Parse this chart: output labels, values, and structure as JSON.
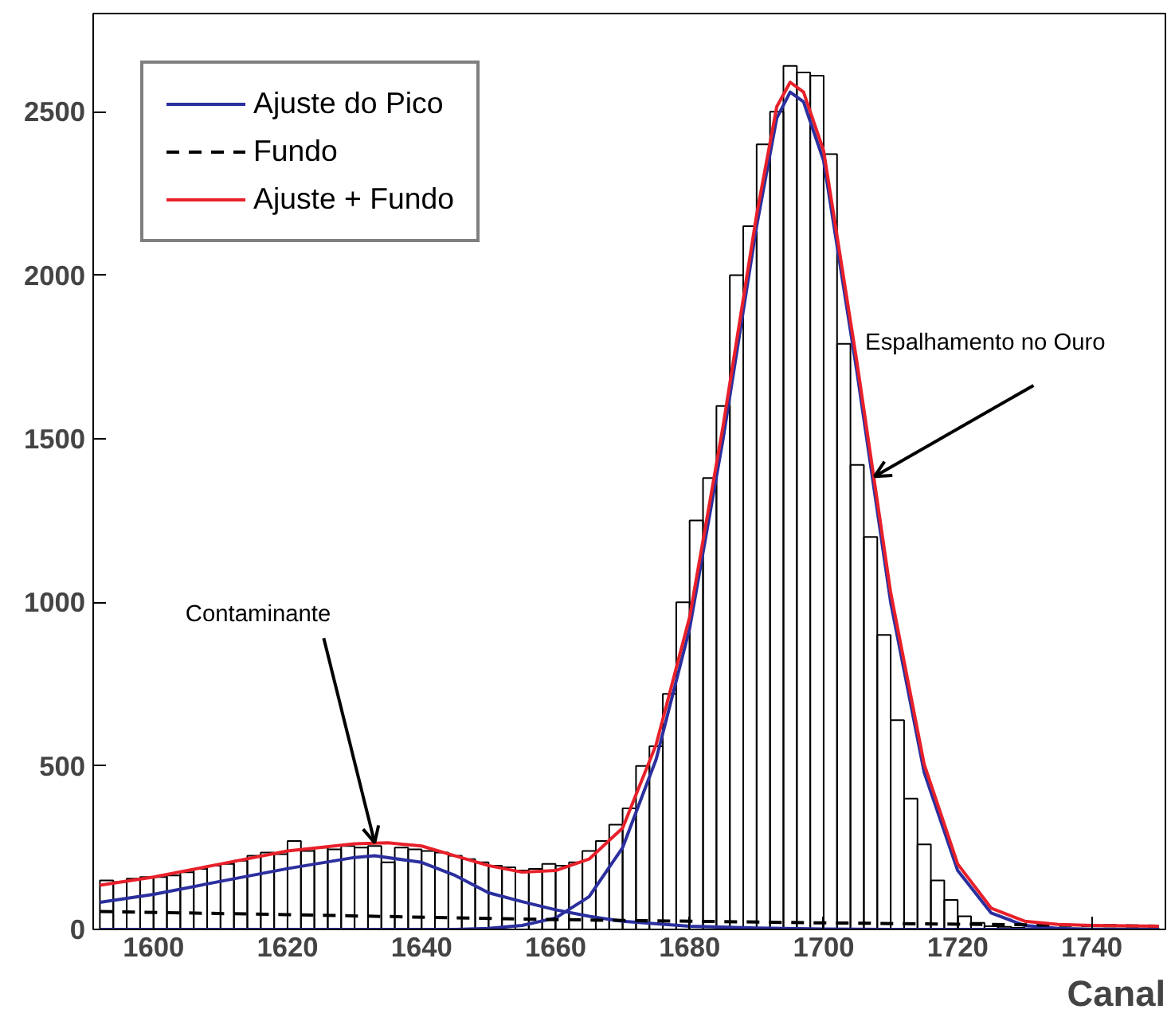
{
  "chart_data": {
    "type": "histogram",
    "xlabel": "Canal",
    "color": "#000000",
    "bins": [
      1592,
      1594,
      1596,
      1598,
      1600,
      1602,
      1604,
      1606,
      1608,
      1610,
      1612,
      1614,
      1616,
      1618,
      1620,
      1622,
      1624,
      1626,
      1628,
      1630,
      1632,
      1634,
      1636,
      1638,
      1640,
      1642,
      1644,
      1646,
      1648,
      1650,
      1652,
      1654,
      1656,
      1658,
      1660,
      1662,
      1664,
      1666,
      1668,
      1670,
      1672,
      1674,
      1676,
      1678,
      1680,
      1682,
      1684,
      1686,
      1688,
      1690,
      1692,
      1694,
      1696,
      1698,
      1700,
      1702,
      1704,
      1706,
      1708,
      1710,
      1712,
      1714,
      1716,
      1718,
      1720,
      1722,
      1724,
      1726,
      1728,
      1730,
      1732,
      1734,
      1736,
      1738,
      1740,
      1742,
      1744,
      1746,
      1748,
      1750
    ],
    "values": [
      150,
      145,
      155,
      160,
      160,
      165,
      175,
      185,
      195,
      200,
      210,
      225,
      235,
      230,
      270,
      240,
      250,
      245,
      255,
      250,
      255,
      205,
      250,
      245,
      240,
      235,
      225,
      215,
      205,
      195,
      190,
      180,
      185,
      200,
      195,
      205,
      240,
      270,
      320,
      370,
      500,
      560,
      720,
      1000,
      1250,
      1380,
      1600,
      2000,
      2150,
      2400,
      2500,
      2640,
      2620,
      2610,
      2370,
      1790,
      1420,
      1200,
      900,
      640,
      400,
      260,
      150,
      90,
      40,
      20,
      10,
      8,
      5,
      3,
      3,
      3,
      3,
      3,
      3,
      3,
      3,
      3,
      3
    ],
    "series": [
      {
        "type": "line",
        "name": "Ajuste do Pico",
        "color": "#2b2f9e",
        "x": [
          1592,
          1600,
          1610,
          1620,
          1630,
          1633,
          1640,
          1645,
          1650,
          1655,
          1660,
          1665,
          1670,
          1680,
          1690,
          1700,
          1710,
          1750
        ],
        "values": [
          83,
          107,
          147,
          186,
          220,
          225,
          205,
          165,
          112,
          85,
          60,
          40,
          25,
          10,
          4,
          1,
          0,
          0
        ]
      },
      {
        "type": "line",
        "color": "#2b2f9e",
        "x": [
          1592,
          1645,
          1650,
          1655,
          1660,
          1665,
          1670,
          1675,
          1680,
          1685,
          1690,
          1693,
          1695,
          1697,
          1700,
          1705,
          1710,
          1715,
          1720,
          1725,
          1730,
          1735,
          1740,
          1750
        ],
        "values": [
          0,
          0,
          3,
          12,
          35,
          100,
          250,
          520,
          920,
          1500,
          2150,
          2480,
          2560,
          2530,
          2350,
          1700,
          1000,
          480,
          180,
          50,
          12,
          3,
          0,
          0
        ]
      },
      {
        "type": "line",
        "name": "Fundo",
        "color": "#000000",
        "line_style": "dashed",
        "x": [
          1592,
          1620,
          1660,
          1700,
          1750
        ],
        "values": [
          55,
          45,
          30,
          20,
          10
        ]
      },
      {
        "type": "line",
        "name": "Ajuste + Fundo",
        "color": "#e8202a",
        "x": [
          1592,
          1600,
          1610,
          1620,
          1630,
          1635,
          1640,
          1645,
          1650,
          1655,
          1660,
          1665,
          1670,
          1675,
          1680,
          1685,
          1690,
          1693,
          1695,
          1697,
          1700,
          1705,
          1710,
          1715,
          1720,
          1725,
          1730,
          1735,
          1740,
          1750
        ],
        "values": [
          135,
          160,
          200,
          240,
          262,
          265,
          255,
          225,
          195,
          175,
          180,
          215,
          310,
          565,
          955,
          1540,
          2185,
          2515,
          2590,
          2560,
          2380,
          1730,
          1030,
          505,
          200,
          65,
          25,
          15,
          12,
          10
        ]
      }
    ],
    "xlim": [
      1591,
      1751
    ],
    "ylim": [
      0,
      2800
    ],
    "xticks": [
      1600,
      1620,
      1640,
      1660,
      1680,
      1700,
      1720,
      1740
    ],
    "yticks": [
      0,
      500,
      1000,
      1500,
      2000,
      2500
    ],
    "annotations": [
      {
        "text": "Contaminante",
        "x": 1633,
        "y": 265
      },
      {
        "text": "Espalhamento no Ouro",
        "x": 1707.6,
        "y": 1385
      }
    ],
    "legend": "top left",
    "grid": false
  }
}
